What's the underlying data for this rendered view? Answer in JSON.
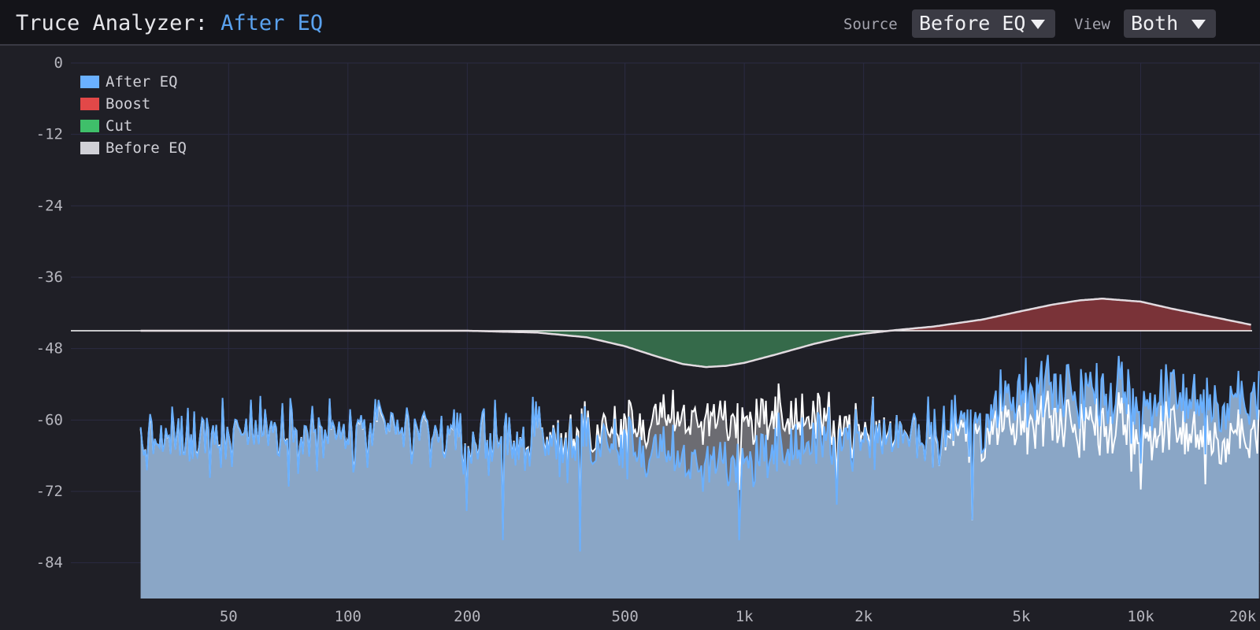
{
  "header": {
    "title_prefix": "Truce Analyzer: ",
    "title_accent": "After EQ",
    "source_label": "Source",
    "source_value": "Before EQ",
    "view_label": "View",
    "view_value": "Both"
  },
  "colors": {
    "background": "#1f1f26",
    "header_bg": "#141419",
    "grid": "#2b2b42",
    "accent_title": "#5aa2ef",
    "after_eq": "#6ab0ff",
    "after_eq_fill": "#8aa6c6",
    "boost": "#e24848",
    "boost_fill": "#7a3338",
    "cut": "#3fbf6a",
    "cut_fill": "#356a4a",
    "before_eq": "#d0d0d6",
    "before_eq_line": "#ffffff",
    "before_eq_fill": "#6c6c72"
  },
  "legend": [
    {
      "name": "After EQ",
      "color": "#6ab0ff"
    },
    {
      "name": "Boost",
      "color": "#e24848"
    },
    {
      "name": "Cut",
      "color": "#3fbf6a"
    },
    {
      "name": "Before EQ",
      "color": "#d0d0d6"
    }
  ],
  "chart_data": {
    "type": "area",
    "x_scale": "log",
    "xlim": [
      20,
      20000
    ],
    "ylim": [
      -90,
      0
    ],
    "y_ticks": [
      0,
      -12,
      -24,
      -36,
      -48,
      -60,
      -72,
      -84
    ],
    "y_tick_labels": [
      "0",
      "-12",
      "-24",
      "-36",
      "-48",
      "-60",
      "-72",
      "-84"
    ],
    "x_ticks": [
      50,
      100,
      200,
      500,
      1000,
      2000,
      5000,
      10000,
      20000
    ],
    "x_tick_labels": [
      "50",
      "100",
      "200",
      "500",
      "1k",
      "2k",
      "5k",
      "10k",
      "20k"
    ],
    "spectrum_start_hz": 30,
    "grid": true,
    "legend_position": "top-left",
    "eq_baseline_db": -45,
    "eq_curve": {
      "freqs": [
        30,
        100,
        200,
        300,
        400,
        500,
        600,
        700,
        800,
        900,
        1000,
        1200,
        1500,
        1800,
        2000,
        2400,
        3000,
        4000,
        5000,
        6000,
        7000,
        8000,
        10000,
        12000,
        15000,
        20000
      ],
      "db": [
        -45,
        -45,
        -45,
        -45.3,
        -46.1,
        -47.6,
        -49.3,
        -50.6,
        -51.1,
        -50.9,
        -50.4,
        -49,
        -47.2,
        -46,
        -45.5,
        -44.9,
        -44.3,
        -43.1,
        -41.7,
        -40.6,
        -39.9,
        -39.6,
        -40.1,
        -41.3,
        -42.6,
        -44.3
      ]
    },
    "series": [
      {
        "name": "After EQ",
        "freqs": [
          30,
          40,
          50,
          60,
          80,
          100,
          150,
          200,
          300,
          400,
          500,
          600,
          700,
          800,
          1000,
          1500,
          2000,
          3000,
          4000,
          5000,
          6000,
          8000,
          10000,
          15000,
          20000
        ],
        "db": [
          -64,
          -63,
          -62,
          -61.5,
          -62,
          -62.5,
          -62,
          -63,
          -63.5,
          -64,
          -64.5,
          -66,
          -67,
          -67.5,
          -66.5,
          -64,
          -62.5,
          -61.5,
          -60,
          -56,
          -55,
          -55,
          -56,
          -56.5,
          -57
        ]
      },
      {
        "name": "Before EQ",
        "freqs": [
          30,
          40,
          50,
          60,
          80,
          100,
          150,
          200,
          300,
          400,
          500,
          600,
          700,
          800,
          1000,
          1500,
          2000,
          3000,
          4000,
          5000,
          6000,
          8000,
          10000,
          15000,
          20000
        ],
        "db": [
          -64,
          -63,
          -62,
          -61.5,
          -62,
          -62.5,
          -62,
          -63,
          -63.3,
          -62.5,
          -61.5,
          -60.5,
          -60,
          -60,
          -59.5,
          -60,
          -61.5,
          -62,
          -62,
          -61,
          -60.5,
          -60.5,
          -61.5,
          -62.5,
          -63
        ]
      }
    ]
  }
}
